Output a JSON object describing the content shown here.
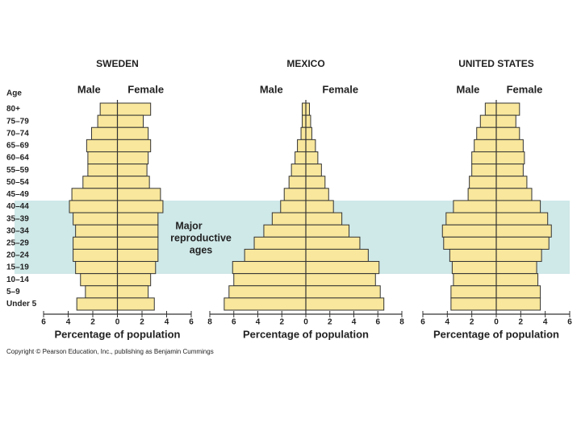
{
  "age_axis_label": "Age",
  "categories": [
    "80+",
    "75–79",
    "70–74",
    "65–69",
    "60–64",
    "55–59",
    "50–54",
    "45–49",
    "40–44",
    "35–39",
    "30–34",
    "25–29",
    "20–24",
    "15–19",
    "10–14",
    "5–9",
    "Under 5"
  ],
  "annotation": [
    "Major",
    "reproductive",
    "ages"
  ],
  "copyright": "Copyright © Pearson Education, Inc., publishing as Benjamin Cummings",
  "chart_data": [
    {
      "type": "pyramid",
      "title": "SWEDEN",
      "x_label": "Percentage of population",
      "xlim": [
        -6,
        6
      ],
      "xticks": [
        {
          "value": -6,
          "label": "6"
        },
        {
          "value": -4,
          "label": "4"
        },
        {
          "value": -2,
          "label": "2"
        },
        0,
        2,
        4,
        6
      ],
      "series": [
        {
          "name": "Male",
          "color": "#f8e79c",
          "values": [
            1.4,
            1.6,
            2.1,
            2.5,
            2.4,
            2.4,
            2.8,
            3.7,
            3.9,
            3.6,
            3.4,
            3.6,
            3.6,
            3.4,
            3.0,
            2.6,
            3.3
          ]
        },
        {
          "name": "Female",
          "color": "#f8e79c",
          "values": [
            2.7,
            2.1,
            2.5,
            2.7,
            2.5,
            2.4,
            2.6,
            3.5,
            3.7,
            3.3,
            3.3,
            3.3,
            3.3,
            3.1,
            2.7,
            2.5,
            3.0
          ]
        }
      ]
    },
    {
      "type": "pyramid",
      "title": "MEXICO",
      "x_label": "Percentage of population",
      "xlim": [
        -8,
        8
      ],
      "xticks": [
        {
          "value": -8,
          "label": "8"
        },
        {
          "value": -6,
          "label": "6"
        },
        {
          "value": -4,
          "label": "4"
        },
        {
          "value": -2,
          "label": "2"
        },
        0,
        2,
        4,
        6,
        8
      ],
      "series": [
        {
          "name": "Male",
          "color": "#f8e79c",
          "values": [
            0.3,
            0.3,
            0.4,
            0.7,
            0.9,
            1.2,
            1.4,
            1.8,
            2.1,
            2.8,
            3.5,
            4.3,
            5.1,
            6.1,
            6.0,
            6.4,
            6.8
          ]
        },
        {
          "name": "Female",
          "color": "#f8e79c",
          "values": [
            0.3,
            0.4,
            0.5,
            0.8,
            1.0,
            1.3,
            1.6,
            1.9,
            2.3,
            3.0,
            3.6,
            4.5,
            5.2,
            6.1,
            5.8,
            6.2,
            6.5
          ]
        }
      ]
    },
    {
      "type": "pyramid",
      "title": "UNITED STATES",
      "x_label": "Percentage of population",
      "xlim": [
        -6,
        6
      ],
      "xticks": [
        {
          "value": -6,
          "label": "6"
        },
        {
          "value": -4,
          "label": "4"
        },
        {
          "value": -2,
          "label": "2"
        },
        0,
        2,
        4,
        6
      ],
      "series": [
        {
          "name": "Male",
          "color": "#f8e79c",
          "values": [
            0.9,
            1.3,
            1.6,
            1.8,
            2.0,
            2.0,
            2.2,
            2.3,
            3.5,
            4.1,
            4.4,
            4.3,
            3.8,
            3.6,
            3.5,
            3.7,
            3.7
          ]
        },
        {
          "name": "Female",
          "color": "#f8e79c",
          "values": [
            1.9,
            1.6,
            1.9,
            2.2,
            2.3,
            2.2,
            2.5,
            2.9,
            3.6,
            4.2,
            4.5,
            4.3,
            3.7,
            3.3,
            3.4,
            3.6,
            3.6
          ]
        }
      ]
    }
  ]
}
